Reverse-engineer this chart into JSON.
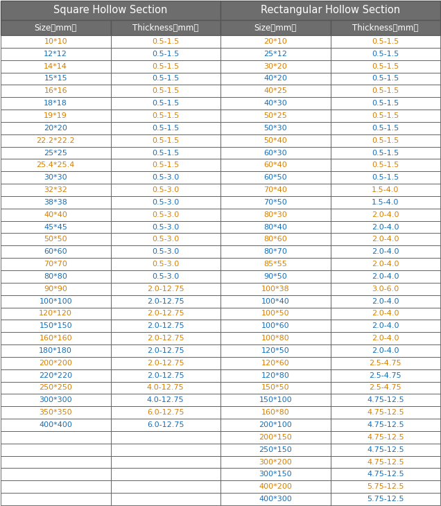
{
  "title_left": "Square Hollow Section",
  "title_right": "Rectangular Hollow Section",
  "col_headers": [
    "Size（mm）",
    "Thickness（mm）",
    "Size（mm）",
    "Thickness（mm）"
  ],
  "square_data": [
    [
      "10*10",
      "0.5-1.5"
    ],
    [
      "12*12",
      "0.5-1.5"
    ],
    [
      "14*14",
      "0.5-1.5"
    ],
    [
      "15*15",
      "0.5-1.5"
    ],
    [
      "16*16",
      "0.5-1.5"
    ],
    [
      "18*18",
      "0.5-1.5"
    ],
    [
      "19*19",
      "0.5-1.5"
    ],
    [
      "20*20",
      "0.5-1.5"
    ],
    [
      "22.2*22.2",
      "0.5-1.5"
    ],
    [
      "25*25",
      "0.5-1.5"
    ],
    [
      "25.4*25.4",
      "0.5-1.5"
    ],
    [
      "30*30",
      "0.5-3.0"
    ],
    [
      "32*32",
      "0.5-3.0"
    ],
    [
      "38*38",
      "0.5-3.0"
    ],
    [
      "40*40",
      "0.5-3.0"
    ],
    [
      "45*45",
      "0.5-3.0"
    ],
    [
      "50*50",
      "0.5-3.0"
    ],
    [
      "60*60",
      "0.5-3.0"
    ],
    [
      "70*70",
      "0.5-3.0"
    ],
    [
      "80*80",
      "0.5-3.0"
    ],
    [
      "90*90",
      "2.0-12.75"
    ],
    [
      "100*100",
      "2.0-12.75"
    ],
    [
      "120*120",
      "2.0-12.75"
    ],
    [
      "150*150",
      "2.0-12.75"
    ],
    [
      "160*160",
      "2.0-12.75"
    ],
    [
      "180*180",
      "2.0-12.75"
    ],
    [
      "200*200",
      "2.0-12.75"
    ],
    [
      "220*220",
      "2.0-12.75"
    ],
    [
      "250*250",
      "4.0-12.75"
    ],
    [
      "300*300",
      "4.0-12.75"
    ],
    [
      "350*350",
      "6.0-12.75"
    ],
    [
      "400*400",
      "6.0-12.75"
    ]
  ],
  "rect_data": [
    [
      "20*10",
      "0.5-1.5"
    ],
    [
      "25*12",
      "0.5-1.5"
    ],
    [
      "30*20",
      "0.5-1.5"
    ],
    [
      "40*20",
      "0.5-1.5"
    ],
    [
      "40*25",
      "0.5-1.5"
    ],
    [
      "40*30",
      "0.5-1.5"
    ],
    [
      "50*25",
      "0.5-1.5"
    ],
    [
      "50*30",
      "0.5-1.5"
    ],
    [
      "50*40",
      "0.5-1.5"
    ],
    [
      "60*30",
      "0.5-1.5"
    ],
    [
      "60*40",
      "0.5-1.5"
    ],
    [
      "60*50",
      "0.5-1.5"
    ],
    [
      "70*40",
      "1.5-4.0"
    ],
    [
      "70*50",
      "1.5-4.0"
    ],
    [
      "80*30",
      "2.0-4.0"
    ],
    [
      "80*40",
      "2.0-4.0"
    ],
    [
      "80*60",
      "2.0-4.0"
    ],
    [
      "80*70",
      "2.0-4.0"
    ],
    [
      "85*55",
      "2.0-4.0"
    ],
    [
      "90*50",
      "2.0-4.0"
    ],
    [
      "100*38",
      "3.0-6.0"
    ],
    [
      "100*40",
      "2.0-4.0"
    ],
    [
      "100*50",
      "2.0-4.0"
    ],
    [
      "100*60",
      "2.0-4.0"
    ],
    [
      "100*80",
      "2.0-4.0"
    ],
    [
      "120*50",
      "2.0-4.0"
    ],
    [
      "120*60",
      "2.5-4.75"
    ],
    [
      "120*80",
      "2.5-4.75"
    ],
    [
      "150*50",
      "2.5-4.75"
    ],
    [
      "150*100",
      "4.75-12.5"
    ],
    [
      "160*80",
      "4.75-12.5"
    ],
    [
      "200*100",
      "4.75-12.5"
    ],
    [
      "200*150",
      "4.75-12.5"
    ],
    [
      "250*150",
      "4.75-12.5"
    ],
    [
      "300*200",
      "4.75-12.5"
    ],
    [
      "300*150",
      "4.75-12.5"
    ],
    [
      "400*200",
      "5.75-12.5"
    ],
    [
      "400*300",
      "5.75-12.5"
    ]
  ],
  "header_bg": "#6d6d6d",
  "header_text_color": "#ffffff",
  "cell_bg_white": "#ffffff",
  "cell_text_orange": "#d4800a",
  "cell_text_blue": "#1a6db5",
  "border_color": "#555555",
  "fig_width": 6.36,
  "fig_height": 7.3,
  "dpi": 100
}
